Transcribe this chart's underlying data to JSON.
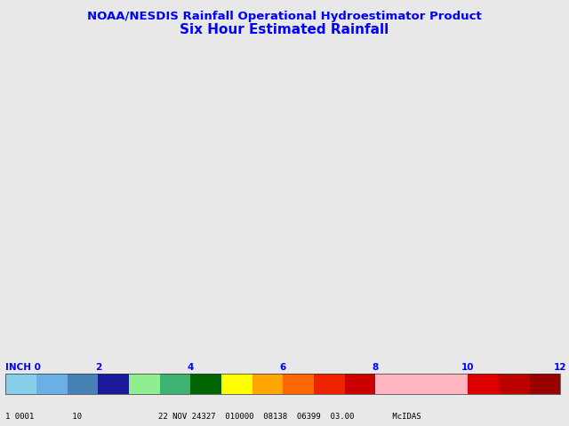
{
  "title1": "NOAA/NESDIS Rainfall Operational Hydroestimator Product",
  "title2": "Six Hour Estimated Rainfall",
  "title1_color": "#0000FF",
  "title2_color": "#0000FF",
  "bg_color": "#E8E8E8",
  "map_bg_color": "#E8E8E8",
  "land_color": "#E8E8E8",
  "ocean_color": "#E8E8E8",
  "border_color": "#666666",
  "state_color": "#888888",
  "bottom_text_left": "1 0001        10",
  "bottom_text_right": "22 NOV 24327  010000  08138  06399  03.00        McIDAS",
  "colorbar_label_color": "#0000FF",
  "colorbar_labels": [
    "0",
    "2",
    "4",
    "6",
    "8",
    "10",
    "12"
  ],
  "colorbar_segment_colors": [
    "#87CEEB",
    "#6AAFE6",
    "#4682B4",
    "#191999",
    "#90EE90",
    "#3CB371",
    "#006400",
    "#FFFF00",
    "#FFA500",
    "#FF6600",
    "#EE2200",
    "#CC0000",
    "#FFB6C1",
    "#FFB6C1",
    "#FFB6C1",
    "#DD0000",
    "#BB0000",
    "#990000"
  ],
  "map_extent": [
    -125,
    -65,
    20,
    52
  ],
  "central_longitude": -96,
  "central_latitude": 37,
  "figsize": [
    6.4,
    4.8
  ],
  "dpi": 100
}
